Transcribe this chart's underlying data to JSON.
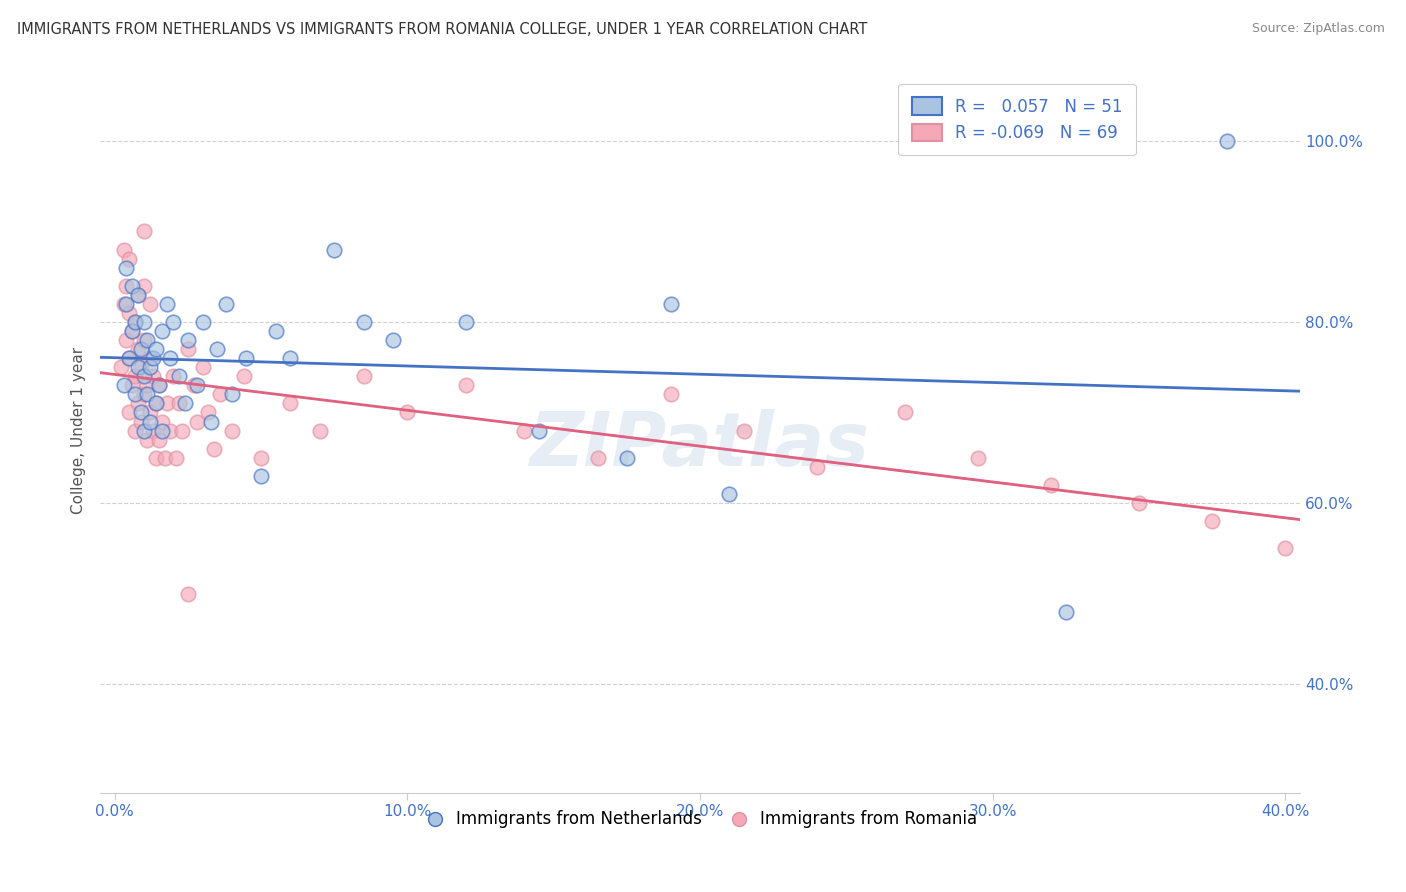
{
  "title": "IMMIGRANTS FROM NETHERLANDS VS IMMIGRANTS FROM ROMANIA COLLEGE, UNDER 1 YEAR CORRELATION CHART",
  "source": "Source: ZipAtlas.com",
  "xlabel_ticks": [
    "0.0%",
    "10.0%",
    "20.0%",
    "30.0%",
    "40.0%"
  ],
  "xlabel_tick_vals": [
    0.0,
    0.1,
    0.2,
    0.3,
    0.4
  ],
  "ylabel": "College, Under 1 year",
  "ylabel_ticks": [
    "40.0%",
    "60.0%",
    "80.0%",
    "100.0%"
  ],
  "ylabel_tick_vals": [
    0.4,
    0.6,
    0.8,
    1.0
  ],
  "xlim": [
    -0.005,
    0.405
  ],
  "ylim": [
    0.28,
    1.08
  ],
  "legend_r_netherlands": "0.057",
  "legend_n_netherlands": "51",
  "legend_r_romania": "-0.069",
  "legend_n_romania": "69",
  "color_netherlands": "#a8c4e0",
  "color_romania": "#f4a8b8",
  "trendline_color_netherlands": "#4472c4",
  "trendline_color_romania": "#e06080",
  "watermark": "ZIPatlas",
  "background_color": "#ffffff",
  "grid_color": "#cccccc",
  "scatter_alpha": 0.65,
  "scatter_size": 110,
  "netherlands_x": [
    0.003,
    0.004,
    0.004,
    0.005,
    0.006,
    0.006,
    0.007,
    0.007,
    0.008,
    0.008,
    0.009,
    0.009,
    0.01,
    0.01,
    0.01,
    0.011,
    0.011,
    0.012,
    0.012,
    0.013,
    0.014,
    0.014,
    0.015,
    0.016,
    0.016,
    0.018,
    0.019,
    0.02,
    0.022,
    0.024,
    0.025,
    0.028,
    0.03,
    0.033,
    0.035,
    0.038,
    0.04,
    0.045,
    0.05,
    0.055,
    0.06,
    0.075,
    0.085,
    0.095,
    0.12,
    0.145,
    0.175,
    0.19,
    0.21,
    0.325,
    0.38
  ],
  "netherlands_y": [
    0.73,
    0.82,
    0.86,
    0.76,
    0.79,
    0.84,
    0.72,
    0.8,
    0.75,
    0.83,
    0.7,
    0.77,
    0.68,
    0.74,
    0.8,
    0.72,
    0.78,
    0.69,
    0.75,
    0.76,
    0.71,
    0.77,
    0.73,
    0.68,
    0.79,
    0.82,
    0.76,
    0.8,
    0.74,
    0.71,
    0.78,
    0.73,
    0.8,
    0.69,
    0.77,
    0.82,
    0.72,
    0.76,
    0.63,
    0.79,
    0.76,
    0.88,
    0.8,
    0.78,
    0.8,
    0.68,
    0.65,
    0.82,
    0.61,
    0.48,
    1.0
  ],
  "romania_x": [
    0.002,
    0.003,
    0.003,
    0.004,
    0.004,
    0.005,
    0.005,
    0.005,
    0.005,
    0.006,
    0.006,
    0.007,
    0.007,
    0.007,
    0.008,
    0.008,
    0.008,
    0.009,
    0.009,
    0.01,
    0.01,
    0.01,
    0.01,
    0.011,
    0.011,
    0.012,
    0.012,
    0.012,
    0.013,
    0.013,
    0.014,
    0.014,
    0.015,
    0.015,
    0.016,
    0.017,
    0.018,
    0.019,
    0.02,
    0.021,
    0.022,
    0.023,
    0.025,
    0.027,
    0.028,
    0.03,
    0.032,
    0.034,
    0.036,
    0.04,
    0.044,
    0.05,
    0.06,
    0.07,
    0.085,
    0.1,
    0.12,
    0.14,
    0.165,
    0.19,
    0.215,
    0.24,
    0.27,
    0.295,
    0.32,
    0.35,
    0.375,
    0.4,
    0.025
  ],
  "romania_y": [
    0.75,
    0.82,
    0.88,
    0.78,
    0.84,
    0.7,
    0.76,
    0.81,
    0.87,
    0.73,
    0.79,
    0.68,
    0.74,
    0.8,
    0.71,
    0.77,
    0.83,
    0.69,
    0.75,
    0.72,
    0.78,
    0.84,
    0.9,
    0.67,
    0.73,
    0.7,
    0.76,
    0.82,
    0.68,
    0.74,
    0.65,
    0.71,
    0.67,
    0.73,
    0.69,
    0.65,
    0.71,
    0.68,
    0.74,
    0.65,
    0.71,
    0.68,
    0.77,
    0.73,
    0.69,
    0.75,
    0.7,
    0.66,
    0.72,
    0.68,
    0.74,
    0.65,
    0.71,
    0.68,
    0.74,
    0.7,
    0.73,
    0.68,
    0.65,
    0.72,
    0.68,
    0.64,
    0.7,
    0.65,
    0.62,
    0.6,
    0.58,
    0.55,
    0.5
  ]
}
